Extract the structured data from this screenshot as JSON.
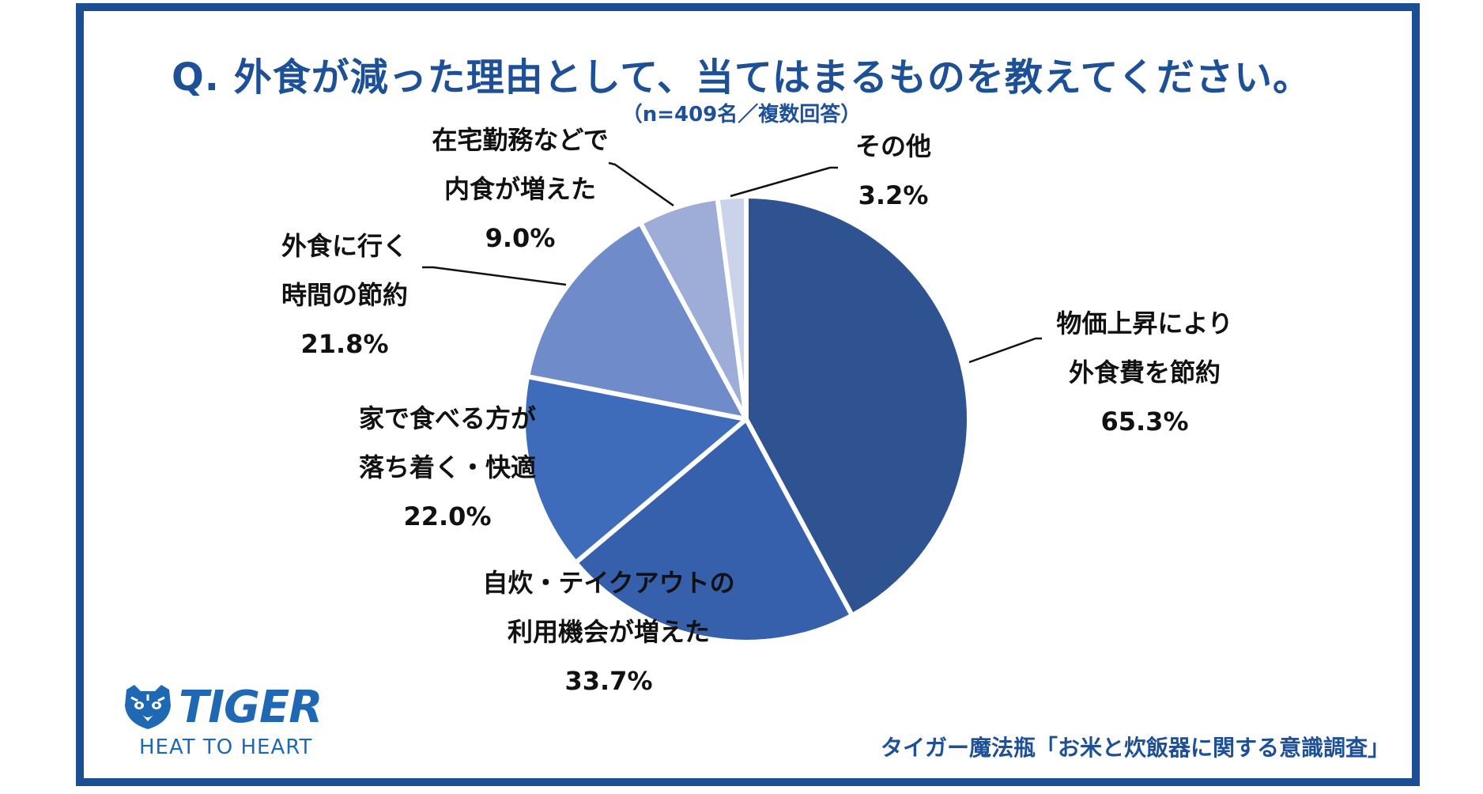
{
  "title": "Q. 外食が減った理由として、当てはまるものを教えてください。",
  "subtitle": "（n=409名／複数回答）",
  "brand": {
    "name": "TIGER",
    "tagline": "HEAT TO HEART",
    "logo_icon": "tiger-face-icon",
    "color": "#1f68b3"
  },
  "source": "タイガー魔法瓶「お米と炊飯器に関する意識調査」",
  "chart_data": {
    "type": "pie",
    "title": "Q. 外食が減った理由として、当てはまるものを教えてください。",
    "subtitle": "（n=409名／複数回答）",
    "unit": "%",
    "slices": [
      {
        "label_lines": [
          "物価上昇により",
          "外食費を節約"
        ],
        "value": 65.3,
        "value_label": "65.3%",
        "color": "#2f5290"
      },
      {
        "label_lines": [
          "自炊・テイクアウトの",
          "利用機会が増えた"
        ],
        "value": 33.7,
        "value_label": "33.7%",
        "color": "#3660ac"
      },
      {
        "label_lines": [
          "家で食べる方が",
          "落ち着く・快適"
        ],
        "value": 22.0,
        "value_label": "22.0%",
        "color": "#3e6cbb"
      },
      {
        "label_lines": [
          "外食に行く",
          "時間の節約"
        ],
        "value": 21.8,
        "value_label": "21.8%",
        "color": "#6f8bc9"
      },
      {
        "label_lines": [
          "在宅勤務などで",
          "内食が増えた"
        ],
        "value": 9.0,
        "value_label": "9.0%",
        "color": "#9dadd8"
      },
      {
        "label_lines": [
          "その他"
        ],
        "value": 3.2,
        "value_label": "3.2%",
        "color": "#cbd3ea"
      }
    ]
  }
}
